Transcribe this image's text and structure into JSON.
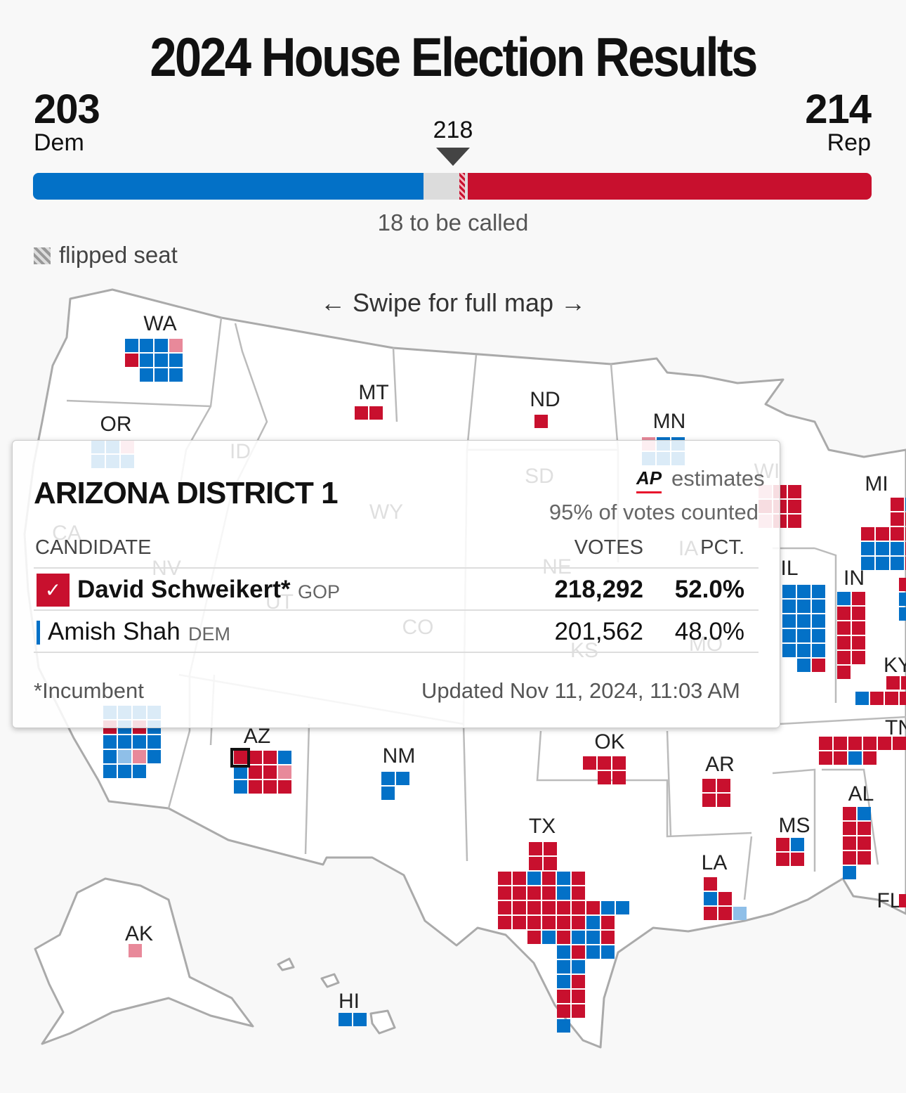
{
  "title": "2024 House Election Results",
  "dem": {
    "count": "203",
    "label": "Dem"
  },
  "rep": {
    "count": "214",
    "label": "Rep"
  },
  "majority": "218",
  "to_be_called": "18 to be called",
  "legend_flipped": "flipped seat",
  "swipe_hint": "← Swipe for full map →",
  "colors": {
    "dem": "#0371c7",
    "rep": "#c8102e",
    "dem_light": "#8fbfe8",
    "rep_light": "#e8899a",
    "undecided": "#dcdcdc"
  },
  "progress": {
    "total_seats": 435,
    "dem_seats": 203,
    "rep_seats": 214,
    "flipped_rep_seats": 3
  },
  "map": {
    "states": [
      {
        "label": "WA"
      },
      {
        "label": "OR"
      },
      {
        "label": "ID"
      },
      {
        "label": "MT"
      },
      {
        "label": "ND"
      },
      {
        "label": "MN"
      },
      {
        "label": "SD"
      },
      {
        "label": "WY"
      },
      {
        "label": "WI"
      },
      {
        "label": "MI"
      },
      {
        "label": "CA"
      },
      {
        "label": "NV"
      },
      {
        "label": "UT"
      },
      {
        "label": "CO"
      },
      {
        "label": "NE"
      },
      {
        "label": "IA"
      },
      {
        "label": "IL"
      },
      {
        "label": "IN"
      },
      {
        "label": "KS"
      },
      {
        "label": "MO"
      },
      {
        "label": "KY"
      },
      {
        "label": "AZ"
      },
      {
        "label": "NM"
      },
      {
        "label": "OK"
      },
      {
        "label": "AR"
      },
      {
        "label": "TN"
      },
      {
        "label": "AL"
      },
      {
        "label": "MS"
      },
      {
        "label": "TX"
      },
      {
        "label": "LA"
      },
      {
        "label": "FL"
      },
      {
        "label": "AK"
      },
      {
        "label": "HI"
      }
    ]
  },
  "tooltip": {
    "title": "ARIZONA DISTRICT 1",
    "source": "AP",
    "estimates": "estimates",
    "counted": "95% of votes counted",
    "headers": {
      "candidate": "CANDIDATE",
      "votes": "VOTES",
      "pct": "PCT."
    },
    "candidates": [
      {
        "name": "David Schweikert*",
        "party": "GOP",
        "votes": "218,292",
        "pct": "52.0%",
        "winner": true
      },
      {
        "name": "Amish Shah",
        "party": "DEM",
        "votes": "201,562",
        "pct": "48.0%",
        "winner": false
      }
    ],
    "footnote": "*Incumbent",
    "updated": "Updated  Nov 11, 2024, 11:03 AM",
    "check_glyph": "✓"
  }
}
